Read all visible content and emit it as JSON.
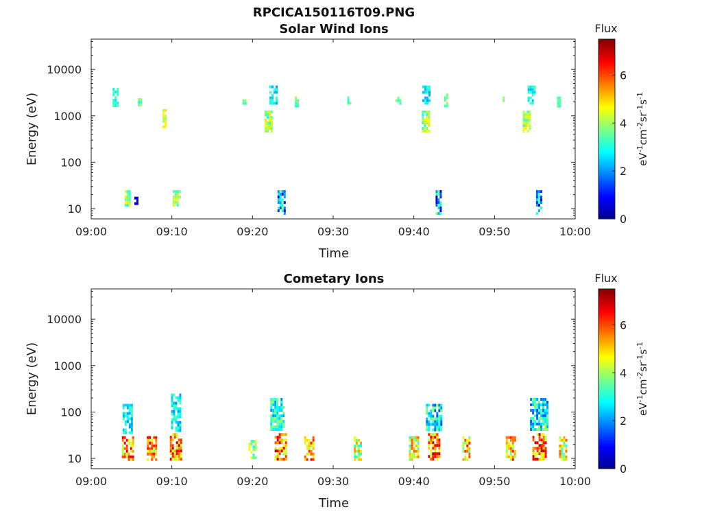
{
  "figure": {
    "filename_title": "RPCICA150116T09.PNG"
  },
  "chart_data": [
    {
      "type": "heatmap",
      "title": "Solar Wind Ions",
      "xlabel": "Time",
      "ylabel": "Energy (eV)",
      "xlim": [
        "09:00",
        "10:00"
      ],
      "x_ticks": [
        "09:00",
        "09:10",
        "09:20",
        "09:30",
        "09:40",
        "09:50",
        "10:00"
      ],
      "y_scale": "log",
      "ylim": [
        6,
        45000
      ],
      "y_ticks": [
        10,
        100,
        1000,
        10000
      ],
      "y_tick_labels": [
        "10",
        "100",
        "1000",
        "10000"
      ],
      "colorbar": {
        "label": "Flux",
        "units": "eV-1cm-2sr-1s-1",
        "range": [
          0,
          7.5
        ],
        "ticks": [
          "0",
          "2",
          "4",
          "6"
        ]
      },
      "clusters": [
        {
          "t": "09:03:00",
          "t_span_min": 0.7,
          "e_low": 1600,
          "e_high": 4000,
          "flux": [
            2.5,
            3.5
          ]
        },
        {
          "t": "09:04:30",
          "t_span_min": 0.7,
          "e_low": 12,
          "e_high": 25,
          "flux": [
            3,
            5
          ]
        },
        {
          "t": "09:05:30",
          "t_span_min": 0.3,
          "e_low": 12,
          "e_high": 18,
          "flux": [
            0.5,
            1
          ]
        },
        {
          "t": "09:06:00",
          "t_span_min": 0.4,
          "e_low": 1800,
          "e_high": 2400,
          "flux": [
            3,
            4
          ]
        },
        {
          "t": "09:09:00",
          "t_span_min": 0.3,
          "e_low": 600,
          "e_high": 1400,
          "flux": [
            4,
            5
          ]
        },
        {
          "t": "09:10:30",
          "t_span_min": 0.8,
          "e_low": 12,
          "e_high": 25,
          "flux": [
            3,
            5
          ]
        },
        {
          "t": "09:19:00",
          "t_span_min": 0.5,
          "e_low": 1800,
          "e_high": 2600,
          "flux": [
            3,
            4
          ]
        },
        {
          "t": "09:22:00",
          "t_span_min": 1.0,
          "e_low": 500,
          "e_high": 1300,
          "flux": [
            3,
            5
          ]
        },
        {
          "t": "09:22:30",
          "t_span_min": 0.8,
          "e_low": 1800,
          "e_high": 4500,
          "flux": [
            2,
            3.5
          ]
        },
        {
          "t": "09:23:30",
          "t_span_min": 0.8,
          "e_low": 8,
          "e_high": 25,
          "flux": [
            0.5,
            4
          ]
        },
        {
          "t": "09:25:30",
          "t_span_min": 0.5,
          "e_low": 1700,
          "e_high": 2600,
          "flux": [
            3,
            4
          ]
        },
        {
          "t": "09:32:00",
          "t_span_min": 0.5,
          "e_low": 1800,
          "e_high": 3000,
          "flux": [
            3,
            4
          ]
        },
        {
          "t": "09:38:00",
          "t_span_min": 0.6,
          "e_low": 1800,
          "e_high": 2600,
          "flux": [
            3,
            4
          ]
        },
        {
          "t": "09:41:30",
          "t_span_min": 1.0,
          "e_low": 500,
          "e_high": 1300,
          "flux": [
            3,
            5
          ]
        },
        {
          "t": "09:41:30",
          "t_span_min": 0.9,
          "e_low": 1800,
          "e_high": 4500,
          "flux": [
            2,
            3.5
          ]
        },
        {
          "t": "09:43:00",
          "t_span_min": 0.6,
          "e_low": 8,
          "e_high": 25,
          "flux": [
            0.5,
            4
          ]
        },
        {
          "t": "09:44:00",
          "t_span_min": 0.5,
          "e_low": 1700,
          "e_high": 3000,
          "flux": [
            3,
            4
          ]
        },
        {
          "t": "09:51:00",
          "t_span_min": 0.5,
          "e_low": 1800,
          "e_high": 2600,
          "flux": [
            3,
            4
          ]
        },
        {
          "t": "09:54:00",
          "t_span_min": 1.0,
          "e_low": 500,
          "e_high": 1300,
          "flux": [
            3,
            5
          ]
        },
        {
          "t": "09:54:30",
          "t_span_min": 0.8,
          "e_low": 1800,
          "e_high": 4500,
          "flux": [
            2,
            3.5
          ]
        },
        {
          "t": "09:55:30",
          "t_span_min": 0.7,
          "e_low": 8,
          "e_high": 25,
          "flux": [
            0.5,
            4
          ]
        },
        {
          "t": "09:58:00",
          "t_span_min": 0.5,
          "e_low": 1700,
          "e_high": 2600,
          "flux": [
            3,
            4
          ]
        }
      ]
    },
    {
      "type": "heatmap",
      "title": "Cometary Ions",
      "xlabel": "Time",
      "ylabel": "Energy (eV)",
      "xlim": [
        "09:00",
        "10:00"
      ],
      "x_ticks": [
        "09:00",
        "09:10",
        "09:20",
        "09:30",
        "09:40",
        "09:50",
        "10:00"
      ],
      "y_scale": "log",
      "ylim": [
        6,
        45000
      ],
      "y_ticks": [
        10,
        100,
        1000,
        10000
      ],
      "y_tick_labels": [
        "10",
        "100",
        "1000",
        "10000"
      ],
      "colorbar": {
        "label": "Flux",
        "units": "eV-1cm-2sr-1s-1",
        "range": [
          0,
          7.5
        ],
        "ticks": [
          "0",
          "2",
          "4",
          "6"
        ]
      },
      "clusters": [
        {
          "t": "09:04:30",
          "t_span_min": 1.4,
          "e_low": 9,
          "e_high": 30,
          "flux": [
            4,
            7
          ]
        },
        {
          "t": "09:04:30",
          "t_span_min": 1.2,
          "e_low": 35,
          "e_high": 150,
          "flux": [
            2,
            3.5
          ]
        },
        {
          "t": "09:07:30",
          "t_span_min": 1.2,
          "e_low": 9,
          "e_high": 30,
          "flux": [
            4,
            7
          ]
        },
        {
          "t": "09:10:30",
          "t_span_min": 1.5,
          "e_low": 9,
          "e_high": 35,
          "flux": [
            4,
            7.2
          ]
        },
        {
          "t": "09:10:30",
          "t_span_min": 1.2,
          "e_low": 40,
          "e_high": 250,
          "flux": [
            2,
            3.5
          ]
        },
        {
          "t": "09:20:00",
          "t_span_min": 1.0,
          "e_low": 9,
          "e_high": 25,
          "flux": [
            3,
            5
          ]
        },
        {
          "t": "09:23:30",
          "t_span_min": 1.5,
          "e_low": 9,
          "e_high": 35,
          "flux": [
            4,
            7.2
          ]
        },
        {
          "t": "09:23:00",
          "t_span_min": 1.6,
          "e_low": 40,
          "e_high": 200,
          "flux": [
            2,
            4
          ]
        },
        {
          "t": "09:27:00",
          "t_span_min": 1.2,
          "e_low": 9,
          "e_high": 30,
          "flux": [
            4,
            6.5
          ]
        },
        {
          "t": "09:33:00",
          "t_span_min": 0.9,
          "e_low": 9,
          "e_high": 30,
          "flux": [
            3,
            5.5
          ]
        },
        {
          "t": "09:40:00",
          "t_span_min": 1.2,
          "e_low": 9,
          "e_high": 30,
          "flux": [
            3,
            6
          ]
        },
        {
          "t": "09:42:30",
          "t_span_min": 1.5,
          "e_low": 9,
          "e_high": 35,
          "flux": [
            4,
            7.2
          ]
        },
        {
          "t": "09:42:30",
          "t_span_min": 2.0,
          "e_low": 40,
          "e_high": 150,
          "flux": [
            1.5,
            4
          ]
        },
        {
          "t": "09:46:30",
          "t_span_min": 1.0,
          "e_low": 9,
          "e_high": 30,
          "flux": [
            3.5,
            6.5
          ]
        },
        {
          "t": "09:52:00",
          "t_span_min": 1.2,
          "e_low": 9,
          "e_high": 30,
          "flux": [
            3.5,
            6.5
          ]
        },
        {
          "t": "09:55:30",
          "t_span_min": 1.6,
          "e_low": 9,
          "e_high": 35,
          "flux": [
            4,
            7.2
          ]
        },
        {
          "t": "09:55:30",
          "t_span_min": 2.2,
          "e_low": 40,
          "e_high": 200,
          "flux": [
            1.5,
            4
          ]
        },
        {
          "t": "09:58:30",
          "t_span_min": 1.0,
          "e_low": 9,
          "e_high": 30,
          "flux": [
            3,
            6
          ]
        }
      ]
    }
  ]
}
